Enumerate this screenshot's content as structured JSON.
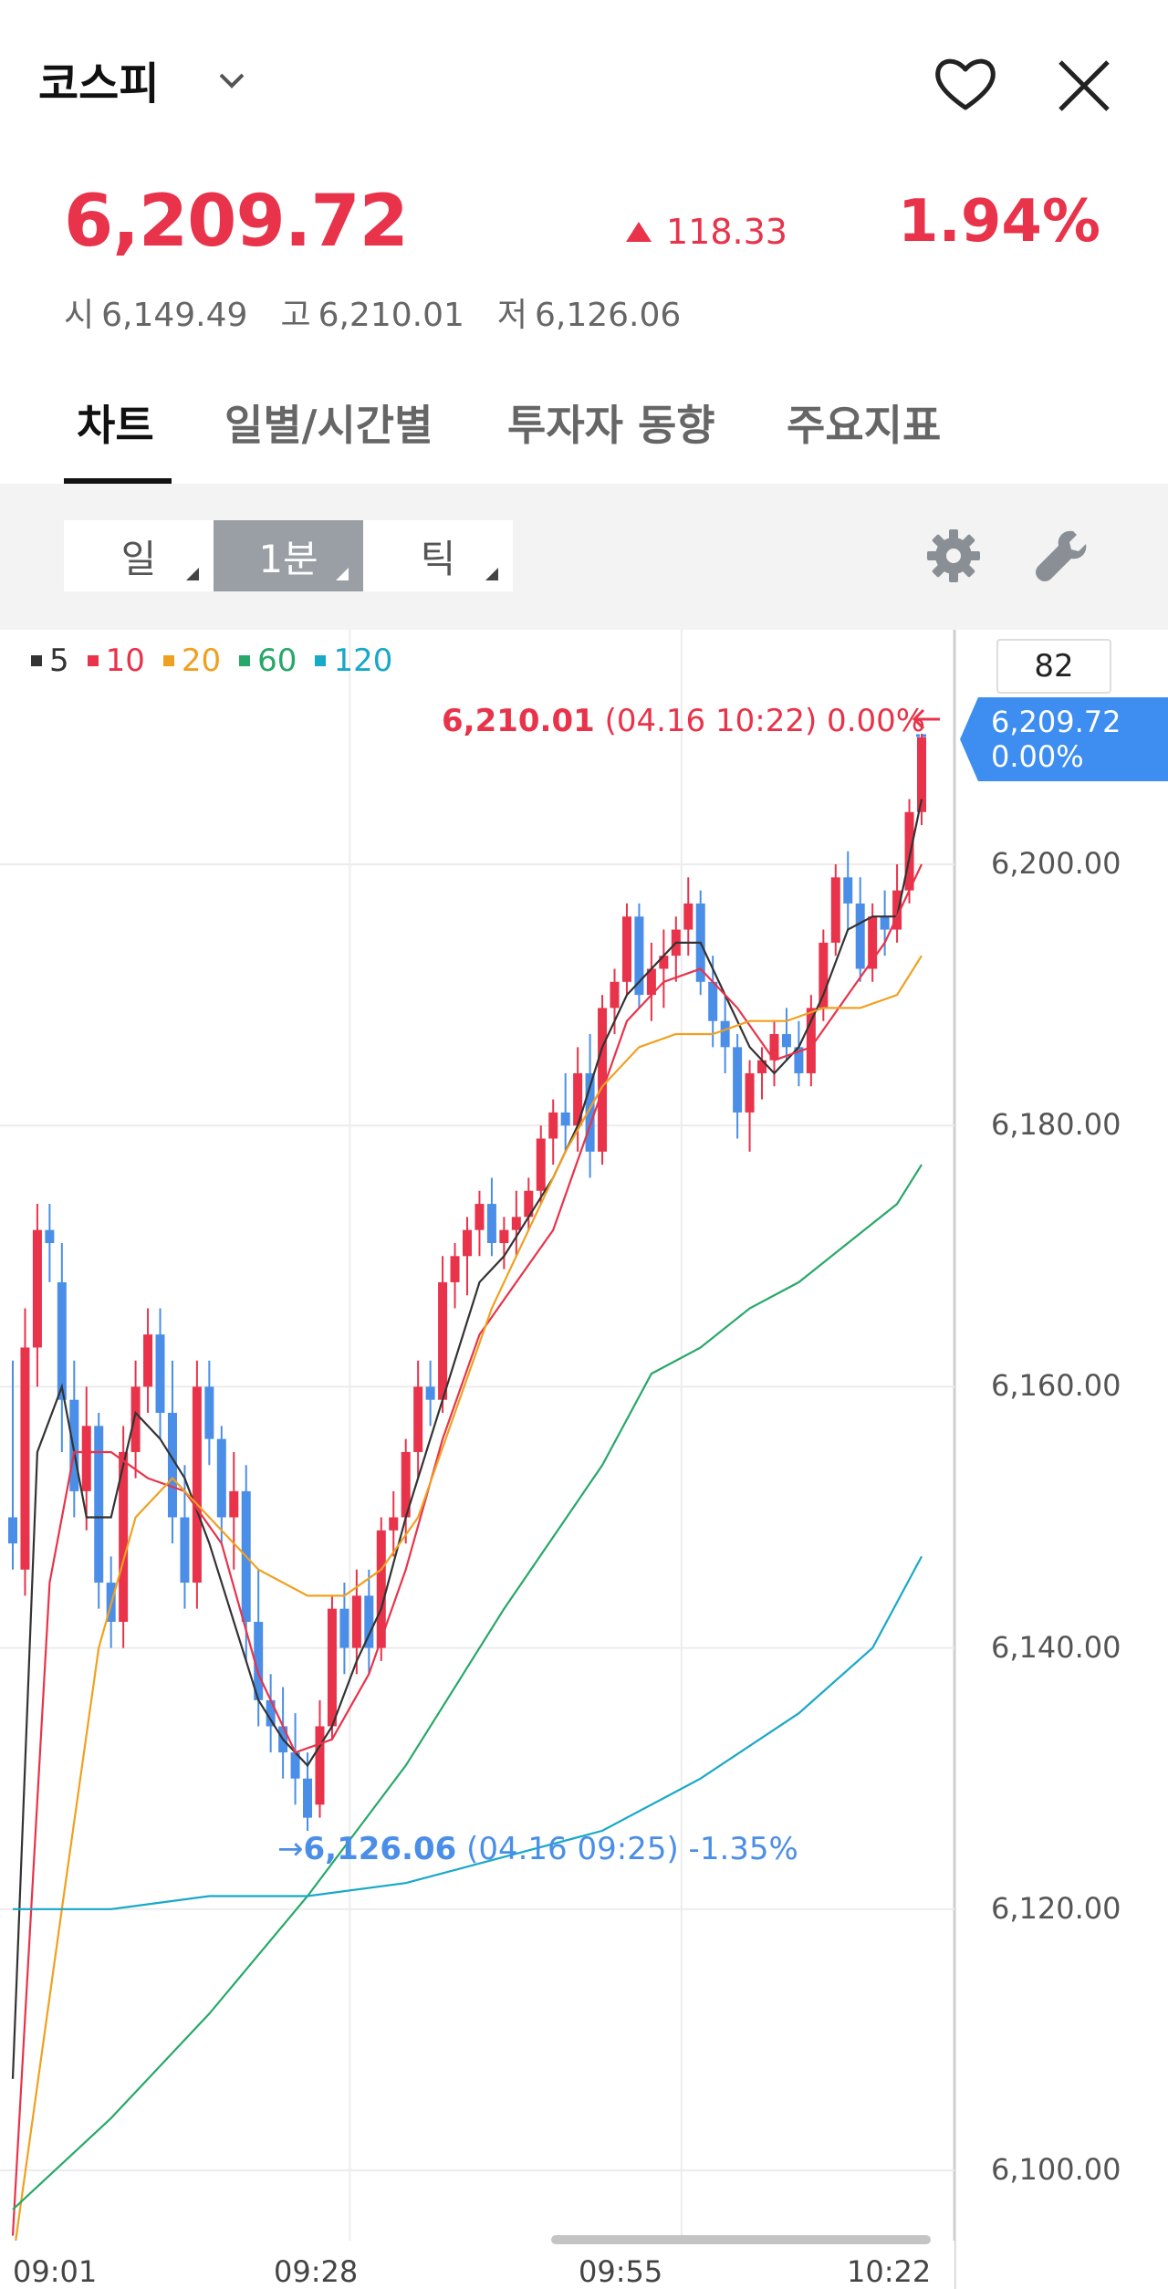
{
  "header": {
    "title": "코스피",
    "price": "6,209.72",
    "change": "118.33",
    "change_pct": "1.94%",
    "open_label": "시",
    "open": "6,149.49",
    "high_label": "고",
    "high": "6,210.01",
    "low_label": "저",
    "low": "6,126.06"
  },
  "tabs": [
    {
      "label": "차트",
      "active": true
    },
    {
      "label": "일별/시간별",
      "active": false
    },
    {
      "label": "투자자 동향",
      "active": false
    },
    {
      "label": "주요지표",
      "active": false
    }
  ],
  "toolbar": {
    "periods": [
      {
        "label": "일",
        "selected": false
      },
      {
        "label": "1분",
        "selected": true
      },
      {
        "label": "틱",
        "selected": false
      }
    ],
    "icons": [
      "gear-icon",
      "wrench-icon"
    ]
  },
  "legend": [
    {
      "label": "5",
      "color": "#333333"
    },
    {
      "label": "10",
      "color": "#e8334a"
    },
    {
      "label": "20",
      "color": "#f0a020"
    },
    {
      "label": "60",
      "color": "#27a868"
    },
    {
      "label": "120",
      "color": "#18a8c8"
    }
  ],
  "volume_box": "82",
  "annotations": {
    "max_value": "6,210.01",
    "max_detail": "(04.16 10:22) 0.00%",
    "min_arrow": "→",
    "min_value": "6,126.06",
    "min_detail": "(04.16 09:25) -1.35%",
    "current_price": "6,209.72",
    "current_pct": "0.00%"
  },
  "colors": {
    "up": "#e8334a",
    "down": "#4a8ee8",
    "accent": "#3d8ef0"
  },
  "chart_data": {
    "type": "candlestick",
    "x_ticks": [
      "09:01",
      "09:28",
      "09:55",
      "10:22"
    ],
    "y_ticks": [
      "6,200.00",
      "6,180.00",
      "6,160.00",
      "6,140.00",
      "6,120.00",
      "6,100.00"
    ],
    "ylim": [
      6093,
      6218
    ],
    "grid": true,
    "candles": [
      [
        6150,
        6162,
        6146,
        6148
      ],
      [
        6146,
        6166,
        6144,
        6163
      ],
      [
        6163,
        6174,
        6160,
        6172
      ],
      [
        6172,
        6174,
        6168,
        6171
      ],
      [
        6168,
        6171,
        6155,
        6159
      ],
      [
        6159,
        6162,
        6150,
        6152
      ],
      [
        6152,
        6160,
        6149,
        6157
      ],
      [
        6157,
        6158,
        6143,
        6145
      ],
      [
        6145,
        6147,
        6140,
        6142
      ],
      [
        6142,
        6157,
        6140,
        6155
      ],
      [
        6155,
        6162,
        6153,
        6160
      ],
      [
        6160,
        6166,
        6158,
        6164
      ],
      [
        6164,
        6166,
        6156,
        6158
      ],
      [
        6158,
        6162,
        6148,
        6150
      ],
      [
        6150,
        6154,
        6143,
        6145
      ],
      [
        6145,
        6162,
        6143,
        6160
      ],
      [
        6160,
        6162,
        6154,
        6156
      ],
      [
        6156,
        6157,
        6148,
        6150
      ],
      [
        6150,
        6155,
        6146,
        6152
      ],
      [
        6152,
        6154,
        6139,
        6142
      ],
      [
        6142,
        6146,
        6134,
        6136
      ],
      [
        6136,
        6138,
        6132,
        6134
      ],
      [
        6134,
        6137,
        6130,
        6132
      ],
      [
        6132,
        6135,
        6128,
        6130
      ],
      [
        6130,
        6132,
        6126,
        6127
      ],
      [
        6128,
        6136,
        6127,
        6134
      ],
      [
        6134,
        6144,
        6133,
        6143
      ],
      [
        6143,
        6145,
        6138,
        6140
      ],
      [
        6140,
        6146,
        6138,
        6144
      ],
      [
        6144,
        6146,
        6138,
        6140
      ],
      [
        6140,
        6150,
        6139,
        6149
      ],
      [
        6149,
        6152,
        6147,
        6150
      ],
      [
        6150,
        6156,
        6148,
        6155
      ],
      [
        6155,
        6162,
        6153,
        6160
      ],
      [
        6160,
        6162,
        6157,
        6159
      ],
      [
        6159,
        6170,
        6158,
        6168
      ],
      [
        6168,
        6171,
        6166,
        6170
      ],
      [
        6170,
        6173,
        6167,
        6172
      ],
      [
        6172,
        6175,
        6170,
        6174
      ],
      [
        6174,
        6176,
        6170,
        6171
      ],
      [
        6171,
        6173,
        6169,
        6172
      ],
      [
        6172,
        6175,
        6170,
        6173
      ],
      [
        6173,
        6176,
        6172,
        6175
      ],
      [
        6175,
        6180,
        6174,
        6179
      ],
      [
        6179,
        6182,
        6177,
        6181
      ],
      [
        6181,
        6184,
        6178,
        6180
      ],
      [
        6180,
        6186,
        6178,
        6184
      ],
      [
        6184,
        6187,
        6176,
        6178
      ],
      [
        6178,
        6190,
        6177,
        6189
      ],
      [
        6189,
        6192,
        6187,
        6191
      ],
      [
        6191,
        6197,
        6190,
        6196
      ],
      [
        6196,
        6197,
        6189,
        6190
      ],
      [
        6190,
        6194,
        6188,
        6192
      ],
      [
        6192,
        6195,
        6189,
        6193
      ],
      [
        6193,
        6196,
        6191,
        6195
      ],
      [
        6195,
        6199,
        6193,
        6197
      ],
      [
        6197,
        6198,
        6190,
        6191
      ],
      [
        6191,
        6193,
        6186,
        6188
      ],
      [
        6188,
        6190,
        6184,
        6186
      ],
      [
        6186,
        6187,
        6179,
        6181
      ],
      [
        6181,
        6185,
        6178,
        6184
      ],
      [
        6184,
        6186,
        6182,
        6185
      ],
      [
        6185,
        6188,
        6183,
        6187
      ],
      [
        6187,
        6189,
        6185,
        6186
      ],
      [
        6186,
        6188,
        6183,
        6184
      ],
      [
        6184,
        6190,
        6183,
        6189
      ],
      [
        6189,
        6195,
        6188,
        6194
      ],
      [
        6194,
        6200,
        6193,
        6199
      ],
      [
        6199,
        6201,
        6195,
        6197
      ],
      [
        6197,
        6199,
        6191,
        6192
      ],
      [
        6192,
        6197,
        6191,
        6196
      ],
      [
        6196,
        6198,
        6193,
        6195
      ],
      [
        6195,
        6200,
        6194,
        6198
      ],
      [
        6198,
        6205,
        6197,
        6204
      ],
      [
        6204,
        6210,
        6203,
        6209.72
      ]
    ],
    "ma": {
      "5": [
        [
          0,
          6107
        ],
        [
          2,
          6155
        ],
        [
          4,
          6160
        ],
        [
          6,
          6150
        ],
        [
          8,
          6150
        ],
        [
          10,
          6158
        ],
        [
          12,
          6156
        ],
        [
          14,
          6153
        ],
        [
          16,
          6148
        ],
        [
          18,
          6142
        ],
        [
          20,
          6136
        ],
        [
          22,
          6133
        ],
        [
          24,
          6131
        ],
        [
          26,
          6134
        ],
        [
          28,
          6139
        ],
        [
          30,
          6143
        ],
        [
          32,
          6150
        ],
        [
          34,
          6156
        ],
        [
          36,
          6162
        ],
        [
          38,
          6168
        ],
        [
          40,
          6170
        ],
        [
          42,
          6173
        ],
        [
          44,
          6176
        ],
        [
          46,
          6180
        ],
        [
          48,
          6186
        ],
        [
          50,
          6190
        ],
        [
          52,
          6192
        ],
        [
          54,
          6194
        ],
        [
          56,
          6194
        ],
        [
          58,
          6190
        ],
        [
          60,
          6186
        ],
        [
          62,
          6184
        ],
        [
          64,
          6186
        ],
        [
          66,
          6190
        ],
        [
          68,
          6195
        ],
        [
          70,
          6196
        ],
        [
          72,
          6196
        ],
        [
          74,
          6205
        ]
      ],
      "10": [
        [
          0,
          6095
        ],
        [
          3,
          6145
        ],
        [
          5,
          6155
        ],
        [
          8,
          6155
        ],
        [
          11,
          6153
        ],
        [
          14,
          6152
        ],
        [
          17,
          6148
        ],
        [
          20,
          6138
        ],
        [
          23,
          6132
        ],
        [
          26,
          6133
        ],
        [
          29,
          6138
        ],
        [
          32,
          6146
        ],
        [
          35,
          6156
        ],
        [
          38,
          6164
        ],
        [
          41,
          6168
        ],
        [
          44,
          6172
        ],
        [
          47,
          6180
        ],
        [
          50,
          6188
        ],
        [
          53,
          6191
        ],
        [
          56,
          6192
        ],
        [
          59,
          6189
        ],
        [
          62,
          6185
        ],
        [
          65,
          6186
        ],
        [
          68,
          6190
        ],
        [
          71,
          6194
        ],
        [
          74,
          6200
        ]
      ],
      "20": [
        [
          0,
          6093
        ],
        [
          4,
          6120
        ],
        [
          7,
          6140
        ],
        [
          10,
          6150
        ],
        [
          13,
          6153
        ],
        [
          16,
          6150
        ],
        [
          20,
          6146
        ],
        [
          24,
          6144
        ],
        [
          27,
          6144
        ],
        [
          30,
          6146
        ],
        [
          33,
          6150
        ],
        [
          36,
          6158
        ],
        [
          39,
          6166
        ],
        [
          42,
          6172
        ],
        [
          45,
          6178
        ],
        [
          48,
          6183
        ],
        [
          51,
          6186
        ],
        [
          54,
          6187
        ],
        [
          57,
          6187
        ],
        [
          60,
          6188
        ],
        [
          63,
          6188
        ],
        [
          66,
          6189
        ],
        [
          69,
          6189
        ],
        [
          72,
          6190
        ],
        [
          74,
          6193
        ]
      ],
      "60": [
        [
          0,
          6097
        ],
        [
          8,
          6104
        ],
        [
          16,
          6112
        ],
        [
          24,
          6121
        ],
        [
          32,
          6131
        ],
        [
          40,
          6143
        ],
        [
          48,
          6154
        ],
        [
          52,
          6161
        ],
        [
          56,
          6163
        ],
        [
          60,
          6166
        ],
        [
          64,
          6168
        ],
        [
          68,
          6171
        ],
        [
          72,
          6174
        ],
        [
          74,
          6177
        ]
      ],
      "120": [
        [
          0,
          6120
        ],
        [
          8,
          6120
        ],
        [
          16,
          6121
        ],
        [
          24,
          6121
        ],
        [
          32,
          6122
        ],
        [
          40,
          6124
        ],
        [
          48,
          6126
        ],
        [
          56,
          6130
        ],
        [
          64,
          6135
        ],
        [
          70,
          6140
        ],
        [
          74,
          6147
        ]
      ]
    }
  }
}
